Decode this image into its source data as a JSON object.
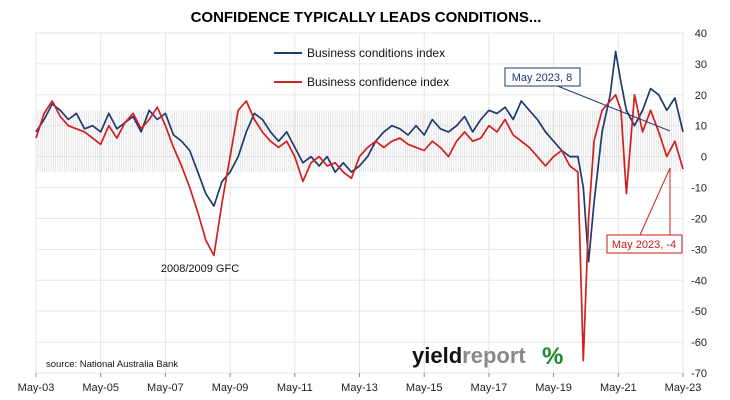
{
  "chart_data": {
    "type": "line",
    "title": "CONFIDENCE TYPICALLY LEADS CONDITIONS...",
    "xlabel": "",
    "ylabel": "",
    "ylim": [
      -70,
      40
    ],
    "y_ticks": [
      40,
      30,
      20,
      10,
      0,
      -10,
      -20,
      -30,
      -40,
      -50,
      -60,
      -70
    ],
    "x_ticks": [
      "May-03",
      "May-05",
      "May-07",
      "May-09",
      "May-11",
      "May-13",
      "May-15",
      "May-17",
      "May-19",
      "May-21",
      "May-23"
    ],
    "legend_placement": "top-center",
    "grid": true,
    "series": [
      {
        "name": "Business conditions index",
        "color": "#1f3a6e",
        "x": [
          "2003-05",
          "2003-08",
          "2003-11",
          "2004-02",
          "2004-05",
          "2004-08",
          "2004-11",
          "2005-02",
          "2005-05",
          "2005-08",
          "2005-11",
          "2006-02",
          "2006-05",
          "2006-08",
          "2006-11",
          "2007-02",
          "2007-05",
          "2007-08",
          "2007-11",
          "2008-02",
          "2008-05",
          "2008-08",
          "2008-11",
          "2009-02",
          "2009-05",
          "2009-08",
          "2009-11",
          "2010-02",
          "2010-05",
          "2010-08",
          "2010-11",
          "2011-02",
          "2011-05",
          "2011-08",
          "2011-11",
          "2012-02",
          "2012-05",
          "2012-08",
          "2012-11",
          "2013-02",
          "2013-05",
          "2013-08",
          "2013-11",
          "2014-02",
          "2014-05",
          "2014-08",
          "2014-11",
          "2015-02",
          "2015-05",
          "2015-08",
          "2015-11",
          "2016-02",
          "2016-05",
          "2016-08",
          "2016-11",
          "2017-02",
          "2017-05",
          "2017-08",
          "2017-11",
          "2018-02",
          "2018-05",
          "2018-08",
          "2018-11",
          "2019-02",
          "2019-05",
          "2019-08",
          "2019-11",
          "2020-02",
          "2020-04",
          "2020-06",
          "2020-08",
          "2020-11",
          "2021-02",
          "2021-04",
          "2021-06",
          "2021-08",
          "2021-11",
          "2022-02",
          "2022-05",
          "2022-08",
          "2022-11",
          "2023-02",
          "2023-05"
        ],
        "values": [
          8,
          12,
          17,
          15,
          12,
          14,
          9,
          10,
          8,
          14,
          9,
          11,
          13,
          8,
          15,
          12,
          14,
          7,
          5,
          2,
          -5,
          -12,
          -16,
          -8,
          -5,
          0,
          8,
          14,
          12,
          8,
          5,
          8,
          3,
          -2,
          0,
          -3,
          0,
          -5,
          -2,
          -5,
          -3,
          0,
          5,
          8,
          10,
          9,
          7,
          10,
          7,
          12,
          9,
          8,
          10,
          13,
          8,
          12,
          15,
          14,
          16,
          12,
          18,
          15,
          12,
          8,
          5,
          2,
          0,
          0,
          -10,
          -34,
          -15,
          8,
          20,
          34,
          24,
          15,
          10,
          15,
          22,
          20,
          15,
          19,
          8
        ]
      },
      {
        "name": "Business confidence index",
        "color": "#d21f1f",
        "x": [
          "2003-05",
          "2003-08",
          "2003-11",
          "2004-02",
          "2004-05",
          "2004-08",
          "2004-11",
          "2005-02",
          "2005-05",
          "2005-08",
          "2005-11",
          "2006-02",
          "2006-05",
          "2006-08",
          "2006-11",
          "2007-02",
          "2007-05",
          "2007-08",
          "2007-11",
          "2008-02",
          "2008-05",
          "2008-08",
          "2008-11",
          "2009-02",
          "2009-05",
          "2009-08",
          "2009-11",
          "2010-02",
          "2010-05",
          "2010-08",
          "2010-11",
          "2011-02",
          "2011-05",
          "2011-08",
          "2011-11",
          "2012-02",
          "2012-05",
          "2012-08",
          "2012-11",
          "2013-02",
          "2013-05",
          "2013-08",
          "2013-11",
          "2014-02",
          "2014-05",
          "2014-08",
          "2014-11",
          "2015-02",
          "2015-05",
          "2015-08",
          "2015-11",
          "2016-02",
          "2016-05",
          "2016-08",
          "2016-11",
          "2017-02",
          "2017-05",
          "2017-08",
          "2017-11",
          "2018-02",
          "2018-05",
          "2018-08",
          "2018-11",
          "2019-02",
          "2019-05",
          "2019-08",
          "2019-11",
          "2020-02",
          "2020-04",
          "2020-06",
          "2020-08",
          "2020-11",
          "2021-02",
          "2021-04",
          "2021-06",
          "2021-08",
          "2021-11",
          "2022-02",
          "2022-05",
          "2022-08",
          "2022-11",
          "2023-02",
          "2023-05"
        ],
        "values": [
          6,
          14,
          18,
          13,
          10,
          9,
          8,
          6,
          4,
          10,
          6,
          11,
          14,
          9,
          12,
          16,
          10,
          3,
          -3,
          -10,
          -18,
          -27,
          -32,
          -15,
          0,
          15,
          18,
          12,
          8,
          5,
          3,
          5,
          0,
          -8,
          -2,
          0,
          -3,
          -2,
          -5,
          -7,
          0,
          3,
          5,
          3,
          5,
          6,
          4,
          3,
          2,
          5,
          3,
          0,
          5,
          8,
          5,
          6,
          10,
          8,
          12,
          7,
          5,
          3,
          0,
          -3,
          0,
          2,
          -3,
          -5,
          -66,
          -20,
          5,
          15,
          18,
          20,
          15,
          -12,
          20,
          8,
          15,
          8,
          0,
          5,
          -4
        ]
      }
    ],
    "annotations": [
      {
        "text": "May 2023, 8",
        "series": "Business conditions index"
      },
      {
        "text": "May 2023, -4",
        "series": "Business confidence index"
      },
      {
        "text": "2008/2009 GFC"
      }
    ],
    "source": "source: National Australia Bank",
    "brand": {
      "word_dark": "yield",
      "word_light": "report",
      "symbol": "%"
    }
  }
}
